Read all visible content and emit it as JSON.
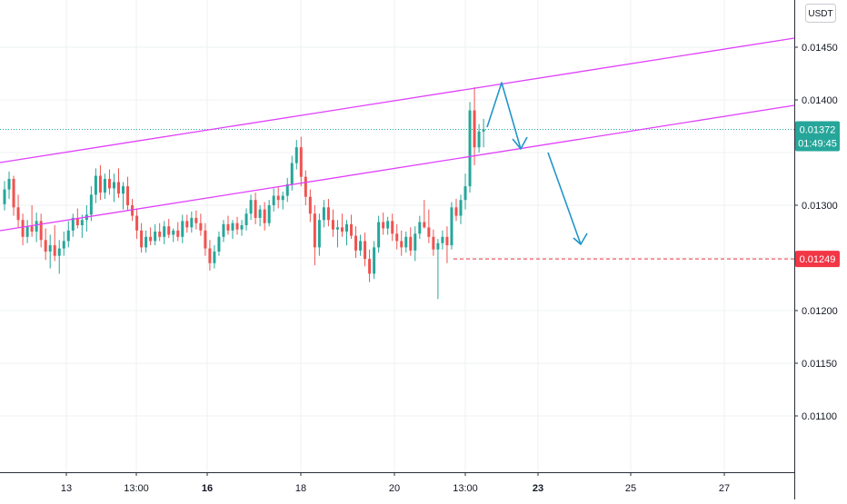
{
  "chart_data": {
    "type": "candlestick",
    "currency_label": "USDT",
    "y_ticks": [
      {
        "value": 0.0145,
        "label": "0.01450"
      },
      {
        "value": 0.014,
        "label": "0.01400"
      },
      {
        "value": 0.013,
        "label": "0.01300"
      },
      {
        "value": 0.012,
        "label": "0.01200"
      },
      {
        "value": 0.0115,
        "label": "0.01150"
      },
      {
        "value": 0.011,
        "label": "0.01100"
      }
    ],
    "x_ticks": [
      {
        "label": "13",
        "bold": false
      },
      {
        "label": "13:00",
        "bold": false
      },
      {
        "label": "16",
        "bold": true
      },
      {
        "label": "18",
        "bold": false
      },
      {
        "label": "20",
        "bold": false
      },
      {
        "label": "13:00",
        "bold": false
      },
      {
        "label": "23",
        "bold": true
      },
      {
        "label": "25",
        "bold": false
      },
      {
        "label": "27",
        "bold": false
      }
    ],
    "ylim": [
      0.01022,
      0.01488
    ],
    "price": {
      "value": 0.01372,
      "label": "0.01372",
      "countdown": "01:49:45",
      "color": "#26a69a"
    },
    "level": {
      "value": 0.01249,
      "label": "0.01249",
      "color": "#f23645"
    },
    "up_color": "#26a69a",
    "down_color": "#ef5350",
    "channel_color": "#e040fb",
    "arrow_color": "#2196c9",
    "candles": [
      [
        0.01301,
        0.01323,
        0.01295,
        0.01315
      ],
      [
        0.01315,
        0.01332,
        0.01306,
        0.01325
      ],
      [
        0.01325,
        0.01328,
        0.0129,
        0.01298
      ],
      [
        0.01298,
        0.0131,
        0.01279,
        0.01286
      ],
      [
        0.01286,
        0.01292,
        0.01262,
        0.0127
      ],
      [
        0.0127,
        0.01286,
        0.01264,
        0.0128
      ],
      [
        0.0128,
        0.013,
        0.0127,
        0.01275
      ],
      [
        0.01275,
        0.01293,
        0.01265,
        0.01285
      ],
      [
        0.01285,
        0.01292,
        0.0126,
        0.01267
      ],
      [
        0.01267,
        0.01278,
        0.01248,
        0.01256
      ],
      [
        0.01256,
        0.01272,
        0.0124,
        0.01262
      ],
      [
        0.01262,
        0.01281,
        0.01247,
        0.01252
      ],
      [
        0.01252,
        0.01267,
        0.01235,
        0.01259
      ],
      [
        0.01259,
        0.01275,
        0.01252,
        0.01266
      ],
      [
        0.01266,
        0.01285,
        0.0126,
        0.01276
      ],
      [
        0.01276,
        0.01292,
        0.0127,
        0.01288
      ],
      [
        0.01288,
        0.01297,
        0.01278,
        0.01281
      ],
      [
        0.01281,
        0.01291,
        0.01269,
        0.01286
      ],
      [
        0.01286,
        0.013,
        0.01275,
        0.01291
      ],
      [
        0.01291,
        0.01318,
        0.01285,
        0.0131
      ],
      [
        0.0131,
        0.01335,
        0.01302,
        0.01328
      ],
      [
        0.01328,
        0.01338,
        0.01305,
        0.01312
      ],
      [
        0.01312,
        0.0133,
        0.01306,
        0.01325
      ],
      [
        0.01325,
        0.01334,
        0.0131,
        0.01316
      ],
      [
        0.01316,
        0.0133,
        0.01303,
        0.01322
      ],
      [
        0.01322,
        0.01335,
        0.01307,
        0.01311
      ],
      [
        0.01311,
        0.01322,
        0.01296,
        0.01318
      ],
      [
        0.01318,
        0.01327,
        0.01295,
        0.013
      ],
      [
        0.013,
        0.01306,
        0.01285,
        0.0129
      ],
      [
        0.0129,
        0.01297,
        0.01268,
        0.01276
      ],
      [
        0.01276,
        0.01283,
        0.01255,
        0.0126
      ],
      [
        0.0126,
        0.01276,
        0.01255,
        0.0127
      ],
      [
        0.0127,
        0.01279,
        0.01262,
        0.01266
      ],
      [
        0.01266,
        0.01282,
        0.01262,
        0.01275
      ],
      [
        0.01275,
        0.01283,
        0.01266,
        0.0127
      ],
      [
        0.0127,
        0.01285,
        0.01263,
        0.0128
      ],
      [
        0.0128,
        0.01287,
        0.01269,
        0.01272
      ],
      [
        0.01272,
        0.01278,
        0.01265,
        0.01276
      ],
      [
        0.01276,
        0.01284,
        0.01266,
        0.0127
      ],
      [
        0.0127,
        0.01291,
        0.01264,
        0.01285
      ],
      [
        0.01285,
        0.01291,
        0.01274,
        0.01279
      ],
      [
        0.01279,
        0.01294,
        0.01274,
        0.01288
      ],
      [
        0.01288,
        0.01295,
        0.01277,
        0.01283
      ],
      [
        0.01283,
        0.01292,
        0.01271,
        0.01276
      ],
      [
        0.01276,
        0.01283,
        0.01252,
        0.01259
      ],
      [
        0.01259,
        0.01267,
        0.01238,
        0.01245
      ],
      [
        0.01245,
        0.01262,
        0.0124,
        0.01256
      ],
      [
        0.01256,
        0.01275,
        0.01252,
        0.0127
      ],
      [
        0.0127,
        0.01286,
        0.01265,
        0.01282
      ],
      [
        0.01282,
        0.0129,
        0.01272,
        0.01276
      ],
      [
        0.01276,
        0.01286,
        0.01268,
        0.01283
      ],
      [
        0.01283,
        0.01289,
        0.01272,
        0.01277
      ],
      [
        0.01277,
        0.01286,
        0.01271,
        0.01281
      ],
      [
        0.01281,
        0.01297,
        0.01276,
        0.01292
      ],
      [
        0.01292,
        0.0131,
        0.01286,
        0.01305
      ],
      [
        0.01305,
        0.01312,
        0.01282,
        0.01288
      ],
      [
        0.01288,
        0.013,
        0.0128,
        0.01296
      ],
      [
        0.01296,
        0.01303,
        0.01276,
        0.01283
      ],
      [
        0.01283,
        0.01305,
        0.0128,
        0.013
      ],
      [
        0.013,
        0.01316,
        0.01294,
        0.01309
      ],
      [
        0.01309,
        0.01317,
        0.01297,
        0.01305
      ],
      [
        0.01305,
        0.01313,
        0.01296,
        0.01309
      ],
      [
        0.01309,
        0.01326,
        0.01303,
        0.0132
      ],
      [
        0.0132,
        0.01347,
        0.01314,
        0.0134
      ],
      [
        0.0134,
        0.01362,
        0.01334,
        0.01355
      ],
      [
        0.01355,
        0.01365,
        0.01318,
        0.01327
      ],
      [
        0.01327,
        0.01333,
        0.013,
        0.01308
      ],
      [
        0.01308,
        0.01315,
        0.01284,
        0.01292
      ],
      [
        0.01292,
        0.013,
        0.01243,
        0.0126
      ],
      [
        0.0126,
        0.01292,
        0.01252,
        0.01286
      ],
      [
        0.01286,
        0.01305,
        0.01279,
        0.01298
      ],
      [
        0.01298,
        0.01306,
        0.0128,
        0.01286
      ],
      [
        0.01286,
        0.01296,
        0.0127,
        0.01277
      ],
      [
        0.01277,
        0.01286,
        0.0126,
        0.01279
      ],
      [
        0.01279,
        0.01292,
        0.0127,
        0.01275
      ],
      [
        0.01275,
        0.01286,
        0.01262,
        0.01282
      ],
      [
        0.01282,
        0.01291,
        0.01268,
        0.01271
      ],
      [
        0.01271,
        0.0128,
        0.0125,
        0.01257
      ],
      [
        0.01257,
        0.01272,
        0.01252,
        0.01266
      ],
      [
        0.01266,
        0.01274,
        0.01242,
        0.01249
      ],
      [
        0.01249,
        0.01258,
        0.01227,
        0.01235
      ],
      [
        0.01235,
        0.01266,
        0.0123,
        0.0126
      ],
      [
        0.0126,
        0.0129,
        0.01255,
        0.01284
      ],
      [
        0.01284,
        0.01293,
        0.01272,
        0.01278
      ],
      [
        0.01278,
        0.01289,
        0.01272,
        0.01285
      ],
      [
        0.01285,
        0.01292,
        0.01266,
        0.01273
      ],
      [
        0.01273,
        0.01282,
        0.01258,
        0.01266
      ],
      [
        0.01266,
        0.01276,
        0.01252,
        0.0126
      ],
      [
        0.0126,
        0.01275,
        0.01255,
        0.0127
      ],
      [
        0.0127,
        0.01279,
        0.01252,
        0.01257
      ],
      [
        0.01257,
        0.0128,
        0.01247,
        0.01273
      ],
      [
        0.01273,
        0.0129,
        0.01268,
        0.01284
      ],
      [
        0.01284,
        0.01305,
        0.01278,
        0.01279
      ],
      [
        0.01279,
        0.01296,
        0.01264,
        0.0127
      ],
      [
        0.0127,
        0.01277,
        0.01252,
        0.01258
      ],
      [
        0.01258,
        0.01268,
        0.01211,
        0.01264
      ],
      [
        0.01264,
        0.01276,
        0.01258,
        0.0127
      ],
      [
        0.0127,
        0.0128,
        0.01245,
        0.01262
      ],
      [
        0.01262,
        0.01303,
        0.01258,
        0.01298
      ],
      [
        0.01298,
        0.01306,
        0.01285,
        0.0129
      ],
      [
        0.0129,
        0.0131,
        0.01282,
        0.01305
      ],
      [
        0.01305,
        0.0133,
        0.01296,
        0.01318
      ],
      [
        0.01318,
        0.01398,
        0.01312,
        0.0139
      ],
      [
        0.0139,
        0.01412,
        0.01338,
        0.01355
      ],
      [
        0.01355,
        0.01377,
        0.0135,
        0.0137
      ],
      [
        0.0137,
        0.01382,
        0.01355,
        0.01372
      ]
    ]
  }
}
